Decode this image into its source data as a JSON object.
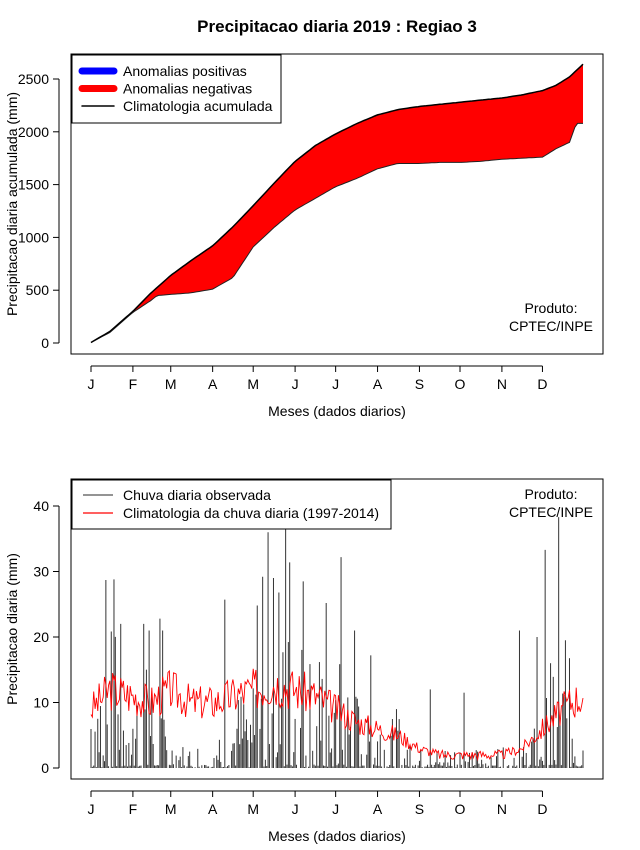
{
  "title": "Precipitacao diaria 2019 : Regiao 3",
  "chart_data": [
    {
      "type": "area",
      "title": "Precipitacao diaria 2019 : Regiao 3",
      "xlabel": "Meses (dados diarios)",
      "ylabel": "Precipitacao diaria acumulada (mm)",
      "month_labels": [
        "J",
        "F",
        "M",
        "A",
        "M",
        "J",
        "J",
        "A",
        "S",
        "O",
        "N",
        "D"
      ],
      "month_start_days": [
        1,
        32,
        60,
        91,
        121,
        152,
        182,
        213,
        244,
        274,
        305,
        335
      ],
      "xlim": [
        1,
        365
      ],
      "ylim": [
        0,
        2700
      ],
      "yticks": [
        0,
        500,
        1000,
        1500,
        2000,
        2500
      ],
      "legend": [
        {
          "label": "Anomalias positivas",
          "color": "#0000ff",
          "kind": "thick"
        },
        {
          "label": "Anomalias negativas",
          "color": "#ff0000",
          "kind": "thick"
        },
        {
          "label": "Climatologia acumulada",
          "color": "#000000",
          "kind": "line"
        }
      ],
      "credit_line1": "Produto:",
      "credit_line2": "CPTEC/INPE",
      "series": [
        {
          "name": "Climatologia acumulada",
          "days": [
            1,
            15,
            32,
            45,
            60,
            75,
            91,
            106,
            121,
            137,
            152,
            167,
            182,
            198,
            213,
            228,
            244,
            259,
            274,
            289,
            305,
            320,
            335,
            345,
            355,
            365
          ],
          "values": [
            5,
            110,
            300,
            470,
            640,
            780,
            920,
            1100,
            1300,
            1520,
            1720,
            1870,
            1980,
            2080,
            2160,
            2210,
            2240,
            2260,
            2280,
            2300,
            2320,
            2350,
            2390,
            2440,
            2520,
            2640
          ]
        },
        {
          "name": "Precipitacao observada acumulada",
          "days": [
            1,
            15,
            32,
            45,
            50,
            60,
            75,
            91,
            106,
            121,
            137,
            152,
            167,
            182,
            198,
            213,
            228,
            244,
            259,
            274,
            289,
            305,
            320,
            335,
            345,
            355,
            360,
            365
          ],
          "values": [
            5,
            100,
            290,
            400,
            450,
            460,
            475,
            510,
            620,
            910,
            1100,
            1260,
            1370,
            1480,
            1560,
            1650,
            1700,
            1700,
            1710,
            1710,
            1720,
            1740,
            1750,
            1760,
            1840,
            1900,
            2080,
            2080
          ]
        }
      ]
    },
    {
      "type": "bar",
      "xlabel": "Meses (dados diarios)",
      "ylabel": "Precipitacao diaria (mm)",
      "month_labels": [
        "J",
        "F",
        "M",
        "A",
        "M",
        "J",
        "J",
        "A",
        "S",
        "O",
        "N",
        "D"
      ],
      "month_start_days": [
        1,
        32,
        60,
        91,
        121,
        152,
        182,
        213,
        244,
        274,
        305,
        335
      ],
      "xlim": [
        1,
        365
      ],
      "ylim": [
        0,
        43
      ],
      "yticks": [
        0,
        10,
        20,
        30,
        40
      ],
      "legend": [
        {
          "label": "Chuva diaria observada",
          "color": "#555555",
          "kind": "line"
        },
        {
          "label": "Climatologia da chuva diaria (1997-2014)",
          "color": "#ff0000",
          "kind": "line"
        }
      ],
      "credit_line1": "Produto:",
      "credit_line2": "CPTEC/INPE",
      "series": [
        {
          "name": "Chuva diaria observada",
          "envelope_days": [
            1,
            15,
            32,
            45,
            60,
            75,
            91,
            106,
            121,
            137,
            152,
            167,
            182,
            198,
            213,
            228,
            244,
            259,
            274,
            289,
            305,
            320,
            335,
            350,
            365
          ],
          "envelope_values": [
            15,
            22,
            20,
            15,
            5,
            3,
            6,
            10,
            18,
            25,
            22,
            20,
            18,
            12,
            10,
            9,
            3,
            3,
            4,
            3,
            4,
            3,
            10,
            18,
            15
          ],
          "spikes": [
            [
              12,
              28.7
            ],
            [
              18,
              28.8
            ],
            [
              23,
              22
            ],
            [
              40,
              22
            ],
            [
              44,
              21
            ],
            [
              52,
              22.8
            ],
            [
              54,
              21
            ],
            [
              100,
              25.7
            ],
            [
              124,
              24.8
            ],
            [
              128,
              29.2
            ],
            [
              132,
              36
            ],
            [
              136,
              29
            ],
            [
              140,
              26.8
            ],
            [
              145,
              38
            ],
            [
              148,
              31.4
            ],
            [
              158,
              28.5
            ],
            [
              175,
              25.2
            ],
            [
              186,
              32.2
            ],
            [
              196,
              21
            ],
            [
              208,
              17.2
            ],
            [
              252,
              12
            ],
            [
              277,
              11.5
            ],
            [
              318,
              21
            ],
            [
              331,
              20
            ],
            [
              337,
              33.3
            ],
            [
              341,
              16
            ],
            [
              347,
              38.3
            ],
            [
              352,
              19.5
            ]
          ]
        },
        {
          "name": "Climatologia da chuva diaria (1997-2014)",
          "days": [
            1,
            15,
            32,
            45,
            60,
            75,
            91,
            106,
            121,
            137,
            152,
            167,
            182,
            198,
            213,
            228,
            244,
            259,
            274,
            289,
            305,
            320,
            335,
            345,
            355,
            365
          ],
          "values": [
            9,
            12,
            11,
            10,
            12,
            10,
            10,
            11,
            12,
            13,
            12,
            11,
            9,
            7,
            6,
            5,
            3,
            2,
            2,
            2,
            2,
            3,
            6,
            8,
            10,
            11
          ]
        }
      ]
    }
  ]
}
